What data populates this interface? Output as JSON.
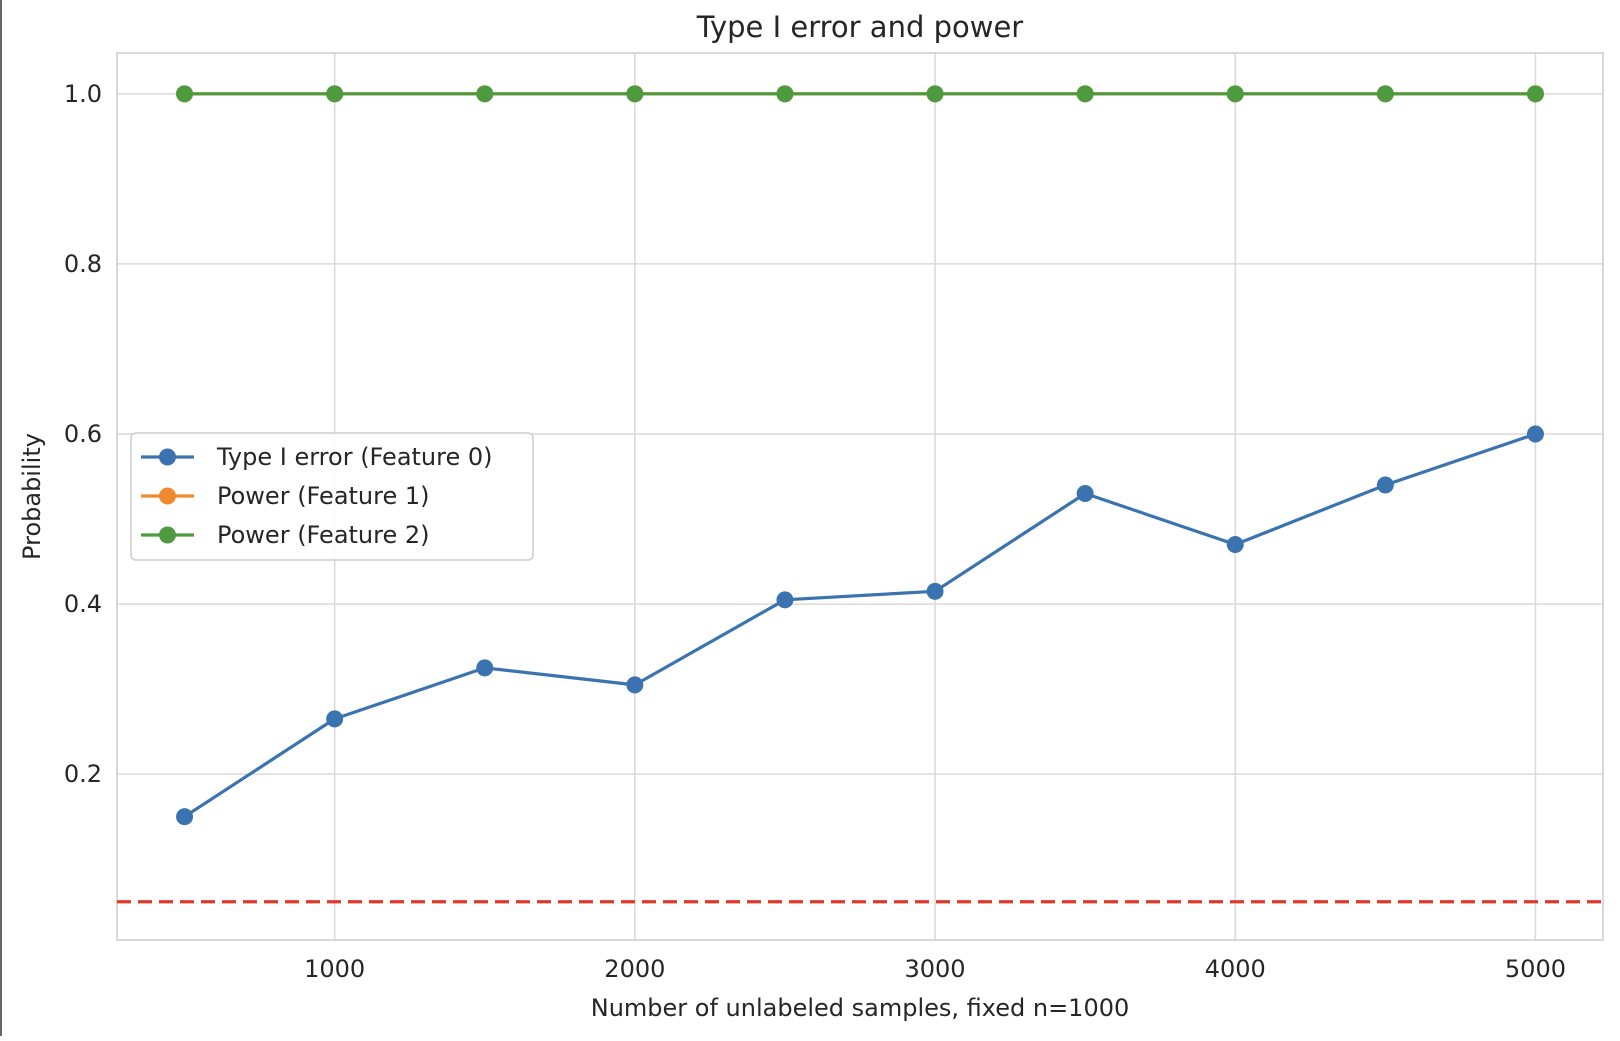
{
  "chart_data": {
    "type": "line",
    "title": "Type I error and power",
    "xlabel": "Number of unlabeled samples, fixed n=1000",
    "ylabel": "Probability",
    "x": [
      500,
      1000,
      1500,
      2000,
      2500,
      3000,
      3500,
      4000,
      4500,
      5000
    ],
    "xlim": [
      275,
      5225
    ],
    "ylim": [
      0.005,
      1.048
    ],
    "xticks": [
      1000,
      2000,
      3000,
      4000,
      5000
    ],
    "xtick_labels": [
      "1000",
      "2000",
      "3000",
      "4000",
      "5000"
    ],
    "yticks": [
      0.2,
      0.4,
      0.6,
      0.8,
      1.0
    ],
    "ytick_labels": [
      "0.2",
      "0.4",
      "0.6",
      "0.8",
      "1.0"
    ],
    "grid": true,
    "series": [
      {
        "name": "Type I error (Feature 0)",
        "color": "#3a73b0",
        "values": [
          0.15,
          0.265,
          0.325,
          0.305,
          0.405,
          0.415,
          0.53,
          0.47,
          0.54,
          0.6
        ]
      },
      {
        "name": "Power (Feature 1)",
        "color": "#f08a30",
        "values": [
          1.0,
          1.0,
          1.0,
          1.0,
          1.0,
          1.0,
          1.0,
          1.0,
          1.0,
          1.0
        ]
      },
      {
        "name": "Power (Feature 2)",
        "color": "#4e9a3e",
        "values": [
          1.0,
          1.0,
          1.0,
          1.0,
          1.0,
          1.0,
          1.0,
          1.0,
          1.0,
          1.0
        ]
      }
    ],
    "reference_line": {
      "y": 0.05,
      "color": "#e0392b",
      "style": "dashed"
    },
    "legend": {
      "placement": "center-left"
    }
  }
}
